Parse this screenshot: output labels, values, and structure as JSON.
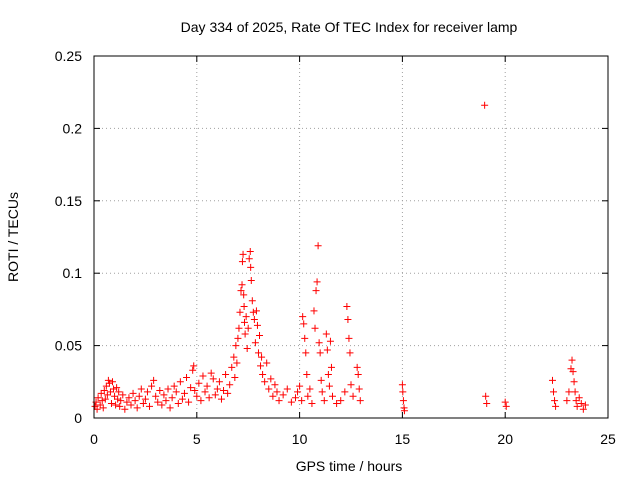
{
  "chart_data": {
    "type": "scatter",
    "title": "Day 334 of 2025, Rate Of TEC Index for receiver lamp",
    "xlabel": "GPS time / hours",
    "ylabel": "ROTI / TECUs",
    "xlim": [
      0,
      25
    ],
    "ylim": [
      0,
      0.25
    ],
    "xticks": [
      0,
      5,
      10,
      15,
      20,
      25
    ],
    "xtick_labels": [
      "0",
      "5",
      "10",
      "15",
      "20",
      "25"
    ],
    "yticks": [
      0,
      0.05,
      0.1,
      0.15,
      0.2,
      0.25
    ],
    "ytick_labels": [
      "0",
      "0.05",
      "0.1",
      "0.15",
      "0.2",
      "0.25"
    ],
    "grid": true,
    "marker": "+",
    "color": "#ff0000",
    "series": [
      {
        "name": "ROTI",
        "points": [
          [
            0.05,
            0.008
          ],
          [
            0.1,
            0.011
          ],
          [
            0.15,
            0.006
          ],
          [
            0.2,
            0.014
          ],
          [
            0.3,
            0.009
          ],
          [
            0.35,
            0.017
          ],
          [
            0.4,
            0.012
          ],
          [
            0.45,
            0.007
          ],
          [
            0.5,
            0.019
          ],
          [
            0.55,
            0.013
          ],
          [
            0.6,
            0.022
          ],
          [
            0.65,
            0.016
          ],
          [
            0.7,
            0.026
          ],
          [
            0.75,
            0.024
          ],
          [
            0.8,
            0.018
          ],
          [
            0.85,
            0.01
          ],
          [
            0.9,
            0.025
          ],
          [
            0.95,
            0.02
          ],
          [
            1.0,
            0.015
          ],
          [
            1.05,
            0.009
          ],
          [
            1.1,
            0.021
          ],
          [
            1.15,
            0.013
          ],
          [
            1.2,
            0.018
          ],
          [
            1.25,
            0.008
          ],
          [
            1.3,
            0.012
          ],
          [
            1.4,
            0.016
          ],
          [
            1.5,
            0.006
          ],
          [
            1.6,
            0.011
          ],
          [
            1.7,
            0.014
          ],
          [
            1.8,
            0.009
          ],
          [
            1.9,
            0.017
          ],
          [
            2.0,
            0.012
          ],
          [
            2.1,
            0.007
          ],
          [
            2.2,
            0.015
          ],
          [
            2.3,
            0.02
          ],
          [
            2.4,
            0.01
          ],
          [
            2.5,
            0.013
          ],
          [
            2.6,
            0.018
          ],
          [
            2.7,
            0.008
          ],
          [
            2.8,
            0.022
          ],
          [
            2.9,
            0.026
          ],
          [
            3.0,
            0.015
          ],
          [
            3.1,
            0.011
          ],
          [
            3.2,
            0.019
          ],
          [
            3.3,
            0.009
          ],
          [
            3.4,
            0.016
          ],
          [
            3.5,
            0.012
          ],
          [
            3.6,
            0.02
          ],
          [
            3.7,
            0.007
          ],
          [
            3.8,
            0.014
          ],
          [
            3.9,
            0.022
          ],
          [
            4.0,
            0.018
          ],
          [
            4.1,
            0.01
          ],
          [
            4.2,
            0.025
          ],
          [
            4.3,
            0.013
          ],
          [
            4.4,
            0.017
          ],
          [
            4.5,
            0.028
          ],
          [
            4.6,
            0.011
          ],
          [
            4.7,
            0.021
          ],
          [
            4.8,
            0.033
          ],
          [
            4.85,
            0.036
          ],
          [
            4.9,
            0.019
          ],
          [
            5.0,
            0.015
          ],
          [
            5.1,
            0.024
          ],
          [
            5.2,
            0.012
          ],
          [
            5.3,
            0.029
          ],
          [
            5.4,
            0.018
          ],
          [
            5.5,
            0.022
          ],
          [
            5.6,
            0.014
          ],
          [
            5.7,
            0.031
          ],
          [
            5.8,
            0.027
          ],
          [
            5.9,
            0.016
          ],
          [
            6.0,
            0.02
          ],
          [
            6.1,
            0.025
          ],
          [
            6.2,
            0.013
          ],
          [
            6.3,
            0.019
          ],
          [
            6.4,
            0.03
          ],
          [
            6.5,
            0.017
          ],
          [
            6.6,
            0.023
          ],
          [
            6.7,
            0.035
          ],
          [
            6.8,
            0.042
          ],
          [
            6.85,
            0.028
          ],
          [
            6.9,
            0.05
          ],
          [
            6.95,
            0.038
          ],
          [
            7.0,
            0.055
          ],
          [
            7.05,
            0.062
          ],
          [
            7.1,
            0.073
          ],
          [
            7.15,
            0.088
          ],
          [
            7.2,
            0.092
          ],
          [
            7.22,
            0.108
          ],
          [
            7.25,
            0.113
          ],
          [
            7.28,
            0.085
          ],
          [
            7.3,
            0.077
          ],
          [
            7.32,
            0.066
          ],
          [
            7.35,
            0.058
          ],
          [
            7.4,
            0.07
          ],
          [
            7.45,
            0.048
          ],
          [
            7.5,
            0.062
          ],
          [
            7.55,
            0.11
          ],
          [
            7.6,
            0.115
          ],
          [
            7.62,
            0.104
          ],
          [
            7.65,
            0.095
          ],
          [
            7.7,
            0.081
          ],
          [
            7.75,
            0.073
          ],
          [
            7.8,
            0.068
          ],
          [
            7.85,
            0.052
          ],
          [
            7.9,
            0.074
          ],
          [
            7.95,
            0.064
          ],
          [
            8.0,
            0.045
          ],
          [
            8.05,
            0.057
          ],
          [
            8.1,
            0.036
          ],
          [
            8.15,
            0.042
          ],
          [
            8.2,
            0.03
          ],
          [
            8.3,
            0.025
          ],
          [
            8.4,
            0.038
          ],
          [
            8.5,
            0.02
          ],
          [
            8.6,
            0.027
          ],
          [
            8.7,
            0.015
          ],
          [
            8.8,
            0.023
          ],
          [
            8.9,
            0.018
          ],
          [
            9.0,
            0.012
          ],
          [
            9.2,
            0.016
          ],
          [
            9.4,
            0.02
          ],
          [
            9.6,
            0.011
          ],
          [
            9.8,
            0.014
          ],
          [
            9.9,
            0.018
          ],
          [
            10.0,
            0.022
          ],
          [
            10.1,
            0.012
          ],
          [
            10.15,
            0.07
          ],
          [
            10.2,
            0.065
          ],
          [
            10.25,
            0.055
          ],
          [
            10.3,
            0.045
          ],
          [
            10.35,
            0.03
          ],
          [
            10.4,
            0.015
          ],
          [
            10.5,
            0.02
          ],
          [
            10.6,
            0.01
          ],
          [
            10.7,
            0.074
          ],
          [
            10.75,
            0.062
          ],
          [
            10.8,
            0.088
          ],
          [
            10.85,
            0.094
          ],
          [
            10.9,
            0.119
          ],
          [
            10.95,
            0.052
          ],
          [
            11.0,
            0.045
          ],
          [
            11.05,
            0.026
          ],
          [
            11.1,
            0.018
          ],
          [
            11.2,
            0.012
          ],
          [
            11.3,
            0.058
          ],
          [
            11.35,
            0.047
          ],
          [
            11.4,
            0.03
          ],
          [
            11.45,
            0.022
          ],
          [
            11.5,
            0.053
          ],
          [
            11.55,
            0.035
          ],
          [
            11.6,
            0.015
          ],
          [
            11.8,
            0.01
          ],
          [
            12.0,
            0.012
          ],
          [
            12.2,
            0.018
          ],
          [
            12.3,
            0.077
          ],
          [
            12.35,
            0.068
          ],
          [
            12.4,
            0.055
          ],
          [
            12.45,
            0.045
          ],
          [
            12.5,
            0.023
          ],
          [
            12.6,
            0.015
          ],
          [
            12.8,
            0.035
          ],
          [
            12.85,
            0.03
          ],
          [
            12.9,
            0.02
          ],
          [
            12.95,
            0.012
          ],
          [
            15.0,
            0.023
          ],
          [
            15.02,
            0.018
          ],
          [
            15.05,
            0.012
          ],
          [
            15.08,
            0.007
          ],
          [
            15.1,
            0.005
          ],
          [
            19.0,
            0.216
          ],
          [
            19.05,
            0.015
          ],
          [
            19.1,
            0.01
          ],
          [
            20.0,
            0.011
          ],
          [
            20.05,
            0.008
          ],
          [
            22.3,
            0.026
          ],
          [
            22.35,
            0.018
          ],
          [
            22.4,
            0.012
          ],
          [
            22.45,
            0.008
          ],
          [
            23.0,
            0.012
          ],
          [
            23.1,
            0.018
          ],
          [
            23.2,
            0.034
          ],
          [
            23.25,
            0.04
          ],
          [
            23.3,
            0.032
          ],
          [
            23.35,
            0.025
          ],
          [
            23.4,
            0.018
          ],
          [
            23.45,
            0.012
          ],
          [
            23.5,
            0.008
          ],
          [
            23.6,
            0.014
          ],
          [
            23.7,
            0.01
          ],
          [
            23.8,
            0.006
          ],
          [
            23.9,
            0.009
          ]
        ]
      }
    ]
  }
}
